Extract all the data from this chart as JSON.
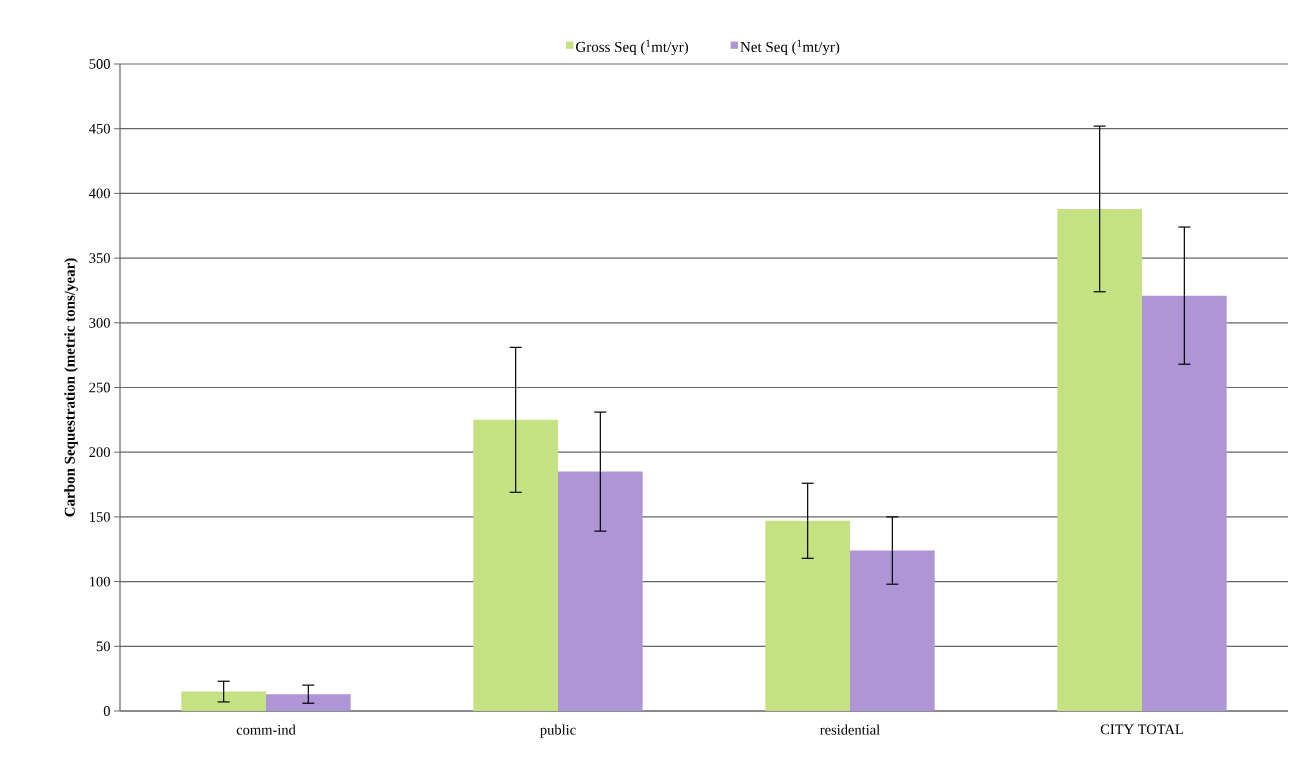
{
  "chart_data": {
    "type": "bar",
    "ylabel": "Carbon Sequestration (metric tons/year)",
    "categories": [
      "comm-ind",
      "public",
      "residential",
      "CITY TOTAL"
    ],
    "series": [
      {
        "name": "Gross Seq ($^{1}$mt/yr)",
        "color": "#c4e282",
        "values": [
          15,
          225,
          147,
          388
        ],
        "errors": [
          8,
          56,
          29,
          64
        ]
      },
      {
        "name": "Net Seq ($^{1}$mt/yr)",
        "color": "#ad95d6",
        "values": [
          13,
          185,
          124,
          321
        ],
        "errors": [
          7,
          46,
          26,
          53
        ]
      }
    ],
    "ylim": [
      0,
      500
    ],
    "yticks": [
      0,
      50,
      100,
      150,
      200,
      250,
      300,
      350,
      400,
      450,
      500
    ],
    "grid": "y",
    "legend": "top"
  }
}
